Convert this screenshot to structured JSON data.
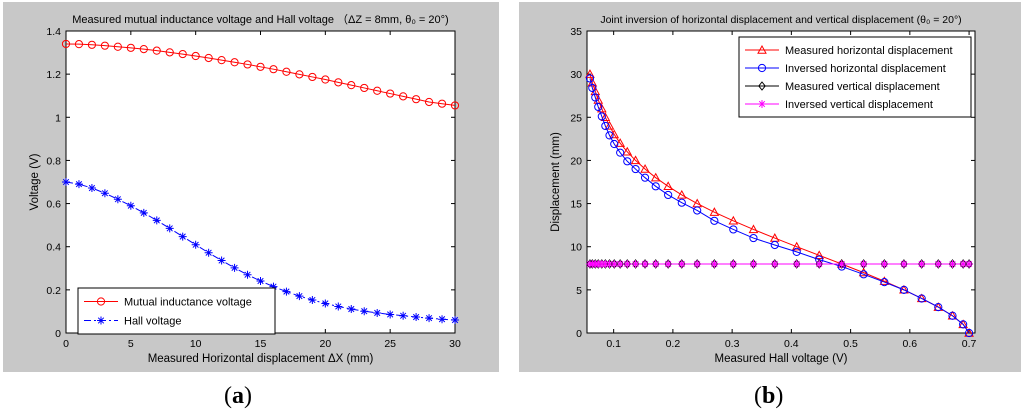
{
  "figures": [
    {
      "label_open": "(",
      "label_letter": "a",
      "label_close": ")",
      "chart_data": {
        "type": "line",
        "title": "Measured mutual inductance voltage and Hall voltage （ΔZ = 8mm, θ₀ = 20°)",
        "xlabel": "Measured Horizontal displacement ΔX (mm)",
        "ylabel": "Voltage (V)",
        "xlim": [
          0,
          30
        ],
        "ylim": [
          0,
          1.4
        ],
        "xticks": [
          0,
          5,
          10,
          15,
          20,
          25,
          30
        ],
        "xtick_labels": [
          "0",
          "5",
          "10",
          "15",
          "20",
          "25",
          "30"
        ],
        "yticks": [
          0,
          0.2,
          0.4,
          0.6,
          0.8,
          1,
          1.2,
          1.4
        ],
        "ytick_labels": [
          "0",
          "0.2",
          "0.4",
          "0.6",
          "0.8",
          "1",
          "1.2",
          "1.4"
        ],
        "legend_position": "bottom-left",
        "series": [
          {
            "name": "Mutual inductance voltage",
            "color": "#ff0000",
            "marker": "circle",
            "dash": "solid",
            "x": [
              0,
              1,
              2,
              3,
              4,
              5,
              6,
              7,
              8,
              9,
              10,
              11,
              12,
              13,
              14,
              15,
              16,
              17,
              18,
              19,
              20,
              21,
              22,
              23,
              24,
              25,
              26,
              27,
              28,
              29,
              30
            ],
            "y": [
              1.34,
              1.339,
              1.336,
              1.332,
              1.327,
              1.322,
              1.316,
              1.309,
              1.301,
              1.293,
              1.284,
              1.275,
              1.265,
              1.255,
              1.245,
              1.234,
              1.223,
              1.211,
              1.199,
              1.187,
              1.175,
              1.162,
              1.149,
              1.136,
              1.123,
              1.11,
              1.097,
              1.084,
              1.071,
              1.063,
              1.055
            ]
          },
          {
            "name": "Hall voltage",
            "color": "#0000ff",
            "marker": "star",
            "dash": "dashdot",
            "x": [
              0,
              1,
              2,
              3,
              4,
              5,
              6,
              7,
              8,
              9,
              10,
              11,
              12,
              13,
              14,
              15,
              16,
              17,
              18,
              19,
              20,
              21,
              22,
              23,
              24,
              25,
              26,
              27,
              28,
              29,
              30
            ],
            "y": [
              0.7,
              0.69,
              0.672,
              0.648,
              0.62,
              0.59,
              0.557,
              0.522,
              0.485,
              0.447,
              0.409,
              0.372,
              0.336,
              0.302,
              0.27,
              0.241,
              0.215,
              0.192,
              0.171,
              0.153,
              0.137,
              0.123,
              0.111,
              0.101,
              0.093,
              0.086,
              0.08,
              0.074,
              0.069,
              0.064,
              0.06
            ]
          }
        ]
      }
    },
    {
      "label_open": "(",
      "label_letter": "b",
      "label_close": ")",
      "chart_data": {
        "type": "line",
        "title": "Joint inversion of horizontal displacement and vertical displacement (θ₀ = 20°)",
        "xlabel": "Measured Hall voltage (V)",
        "ylabel": "Displacement (mm)",
        "xlim": [
          0.055,
          0.71
        ],
        "ylim": [
          0,
          35
        ],
        "xticks": [
          0.1,
          0.2,
          0.3,
          0.4,
          0.5,
          0.6,
          0.7
        ],
        "xtick_labels": [
          "0.1",
          "0.2",
          "0.3",
          "0.4",
          "0.5",
          "0.6",
          "0.7"
        ],
        "yticks": [
          0,
          5,
          10,
          15,
          20,
          25,
          30,
          35
        ],
        "ytick_labels": [
          "0",
          "5",
          "10",
          "15",
          "20",
          "25",
          "30",
          "35"
        ],
        "legend_position": "top-right",
        "series": [
          {
            "name": "Measured horizontal displacement",
            "color": "#ff0000",
            "marker": "triangle",
            "dash": "solid",
            "x": [
              0.06,
              0.064,
              0.069,
              0.074,
              0.08,
              0.086,
              0.093,
              0.101,
              0.111,
              0.123,
              0.137,
              0.153,
              0.171,
              0.192,
              0.215,
              0.241,
              0.27,
              0.302,
              0.336,
              0.372,
              0.409,
              0.447,
              0.485,
              0.522,
              0.557,
              0.59,
              0.62,
              0.648,
              0.672,
              0.69,
              0.7
            ],
            "y": [
              30,
              29,
              28,
              27,
              26,
              25,
              24,
              23,
              22,
              21,
              20,
              19,
              18,
              17,
              16,
              15,
              14,
              13,
              12,
              11,
              10,
              9,
              8,
              7,
              6,
              5,
              4,
              3,
              2,
              1,
              0
            ]
          },
          {
            "name": "Inversed horizontal displacement",
            "color": "#0000ff",
            "marker": "circle",
            "dash": "solid",
            "x": [
              0.06,
              0.064,
              0.069,
              0.074,
              0.08,
              0.086,
              0.093,
              0.101,
              0.111,
              0.123,
              0.137,
              0.153,
              0.171,
              0.192,
              0.215,
              0.241,
              0.27,
              0.302,
              0.336,
              0.372,
              0.409,
              0.447,
              0.485,
              0.522,
              0.557,
              0.59,
              0.62,
              0.648,
              0.672,
              0.69,
              0.7
            ],
            "y": [
              29.5,
              28.4,
              27.3,
              26.2,
              25.1,
              24.0,
              22.9,
              21.9,
              20.9,
              19.9,
              19.0,
              18.0,
              17.0,
              16.0,
              15.1,
              14.2,
              13.0,
              12.0,
              11.0,
              10.2,
              9.4,
              8.5,
              7.7,
              6.8,
              5.9,
              5.0,
              4.0,
              3.0,
              2.0,
              1.0,
              0.0
            ]
          },
          {
            "name": "Measured vertical displacement",
            "color": "#000000",
            "marker": "diamond",
            "dash": "solid",
            "x": [
              0.06,
              0.064,
              0.069,
              0.074,
              0.08,
              0.086,
              0.093,
              0.101,
              0.111,
              0.123,
              0.137,
              0.153,
              0.171,
              0.192,
              0.215,
              0.241,
              0.27,
              0.302,
              0.336,
              0.372,
              0.409,
              0.447,
              0.485,
              0.522,
              0.557,
              0.59,
              0.62,
              0.648,
              0.672,
              0.69,
              0.7
            ],
            "y": [
              8,
              8,
              8,
              8,
              8,
              8,
              8,
              8,
              8,
              8,
              8,
              8,
              8,
              8,
              8,
              8,
              8,
              8,
              8,
              8,
              8,
              8,
              8,
              8,
              8,
              8,
              8,
              8,
              8,
              8,
              8
            ]
          },
          {
            "name": "Inversed vertical displacement",
            "color": "#ff00ff",
            "marker": "asterisk",
            "dash": "solid",
            "x": [
              0.06,
              0.064,
              0.069,
              0.074,
              0.08,
              0.086,
              0.093,
              0.101,
              0.111,
              0.123,
              0.137,
              0.153,
              0.171,
              0.192,
              0.215,
              0.241,
              0.27,
              0.302,
              0.336,
              0.372,
              0.409,
              0.447,
              0.485,
              0.522,
              0.557,
              0.59,
              0.62,
              0.648,
              0.672,
              0.69,
              0.7
            ],
            "y": [
              8,
              8,
              8,
              8,
              8,
              8,
              8,
              8,
              8,
              8,
              8,
              8,
              8,
              8,
              8,
              8,
              8,
              8,
              8,
              8,
              8,
              8,
              8,
              8,
              8,
              8,
              8,
              8,
              8,
              8,
              8
            ]
          }
        ]
      }
    }
  ]
}
